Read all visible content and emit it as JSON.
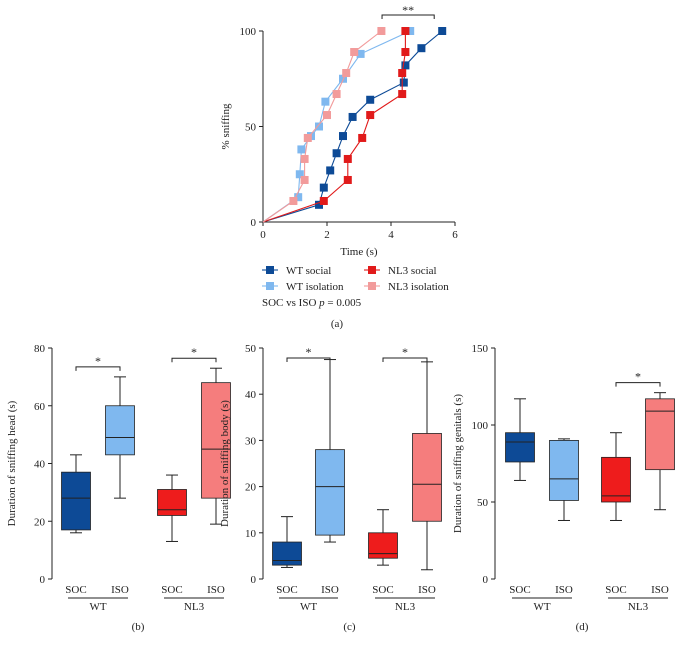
{
  "chart_data": [
    {
      "panel": "(a)",
      "type": "line",
      "xlabel": "Time (s)",
      "ylabel": "% sniffing",
      "xlim": [
        0,
        6
      ],
      "ylim": [
        0,
        100
      ],
      "xticks": [
        "0",
        "2",
        "4",
        "6"
      ],
      "yticks": [
        "0",
        "50",
        "100"
      ],
      "significance": "**",
      "stat_text": "SOC vs ISO",
      "p_text": "p",
      "p_value": "= 0.005",
      "series": [
        {
          "name": "WT social",
          "color": "#0d4a96",
          "legend_col": 0,
          "legend_row": 0,
          "x": [
            0,
            1.75,
            1.9,
            2.1,
            2.3,
            2.5,
            2.8,
            3.35,
            4.4,
            4.45,
            4.95,
            5.6
          ],
          "y": [
            0,
            9,
            18,
            27,
            36,
            45,
            55,
            64,
            73,
            82,
            91,
            100
          ]
        },
        {
          "name": "WT isolation",
          "color": "#7fb8ef",
          "legend_col": 0,
          "legend_row": 1,
          "x": [
            0,
            1.1,
            1.15,
            1.2,
            1.5,
            1.75,
            1.95,
            2.5,
            3.05,
            4.6
          ],
          "y": [
            0,
            13,
            25,
            38,
            45,
            50,
            63,
            75,
            88,
            100
          ]
        },
        {
          "name": "NL3 social",
          "color": "#e11a1a",
          "legend_col": 1,
          "legend_row": 0,
          "x": [
            0,
            1.9,
            2.65,
            2.65,
            3.1,
            3.35,
            4.35,
            4.35,
            4.45,
            4.45
          ],
          "y": [
            0,
            11,
            22,
            33,
            44,
            56,
            67,
            78,
            89,
            100
          ]
        },
        {
          "name": "NL3 isolation",
          "color": "#f29b9b",
          "legend_col": 1,
          "legend_row": 1,
          "x": [
            0,
            0.95,
            1.3,
            1.3,
            1.4,
            2.0,
            2.3,
            2.6,
            2.85,
            3.7
          ],
          "y": [
            0,
            11,
            22,
            33,
            44,
            56,
            67,
            78,
            89,
            100
          ]
        }
      ]
    },
    {
      "panel": "(b)",
      "type": "box",
      "ylabel": "Duration of sniffing head (s)",
      "ylim": [
        0,
        80
      ],
      "yticks": [
        "0",
        "20",
        "40",
        "60",
        "80"
      ],
      "categories": [
        "SOC",
        "ISO",
        "SOC",
        "ISO"
      ],
      "groups": [
        "WT",
        "NL3"
      ],
      "significance": [
        "*",
        "*"
      ],
      "boxes": [
        {
          "min": 16,
          "q1": 17,
          "median": 28,
          "q3": 37,
          "max": 43,
          "color": "#0d4a96"
        },
        {
          "min": 28,
          "q1": 43,
          "median": 49,
          "q3": 60,
          "max": 70,
          "color": "#7fb8ef"
        },
        {
          "min": 13,
          "q1": 22,
          "median": 24,
          "q3": 31,
          "max": 36,
          "color": "#ee1c1c"
        },
        {
          "min": 19,
          "q1": 28,
          "median": 45,
          "q3": 68,
          "max": 73,
          "color": "#f57d7d"
        }
      ]
    },
    {
      "panel": "(c)",
      "type": "box",
      "ylabel": "Duration of sniffing body (s)",
      "ylim": [
        0,
        50
      ],
      "yticks": [
        "0",
        "10",
        "20",
        "30",
        "40",
        "50"
      ],
      "categories": [
        "SOC",
        "ISO",
        "SOC",
        "ISO"
      ],
      "groups": [
        "WT",
        "NL3"
      ],
      "significance": [
        "*",
        "*"
      ],
      "boxes": [
        {
          "min": 2.5,
          "q1": 3,
          "median": 4,
          "q3": 8,
          "max": 13.5,
          "color": "#0d4a96"
        },
        {
          "min": 8,
          "q1": 9.5,
          "median": 20,
          "q3": 28,
          "max": 47.5,
          "color": "#7fb8ef"
        },
        {
          "min": 3,
          "q1": 4.5,
          "median": 5.5,
          "q3": 10,
          "max": 15,
          "color": "#ee1c1c"
        },
        {
          "min": 2,
          "q1": 12.5,
          "median": 20.5,
          "q3": 31.5,
          "max": 47,
          "color": "#f57d7d"
        }
      ]
    },
    {
      "panel": "(d)",
      "type": "box",
      "ylabel": "Duration of sniffing genitals (s)",
      "ylim": [
        0,
        150
      ],
      "yticks": [
        "0",
        "50",
        "100",
        "150"
      ],
      "categories": [
        "SOC",
        "ISO",
        "SOC",
        "ISO"
      ],
      "groups": [
        "WT",
        "NL3"
      ],
      "significance": [
        "",
        "*"
      ],
      "boxes": [
        {
          "min": 64,
          "q1": 76,
          "median": 89,
          "q3": 95,
          "max": 117,
          "color": "#0d4a96"
        },
        {
          "min": 38,
          "q1": 51,
          "median": 65,
          "q3": 90,
          "max": 91,
          "color": "#7fb8ef"
        },
        {
          "min": 38,
          "q1": 50,
          "median": 54,
          "q3": 79,
          "max": 95,
          "color": "#ee1c1c"
        },
        {
          "min": 45,
          "q1": 71,
          "median": 109,
          "q3": 117,
          "max": 121,
          "color": "#f57d7d"
        }
      ]
    }
  ]
}
